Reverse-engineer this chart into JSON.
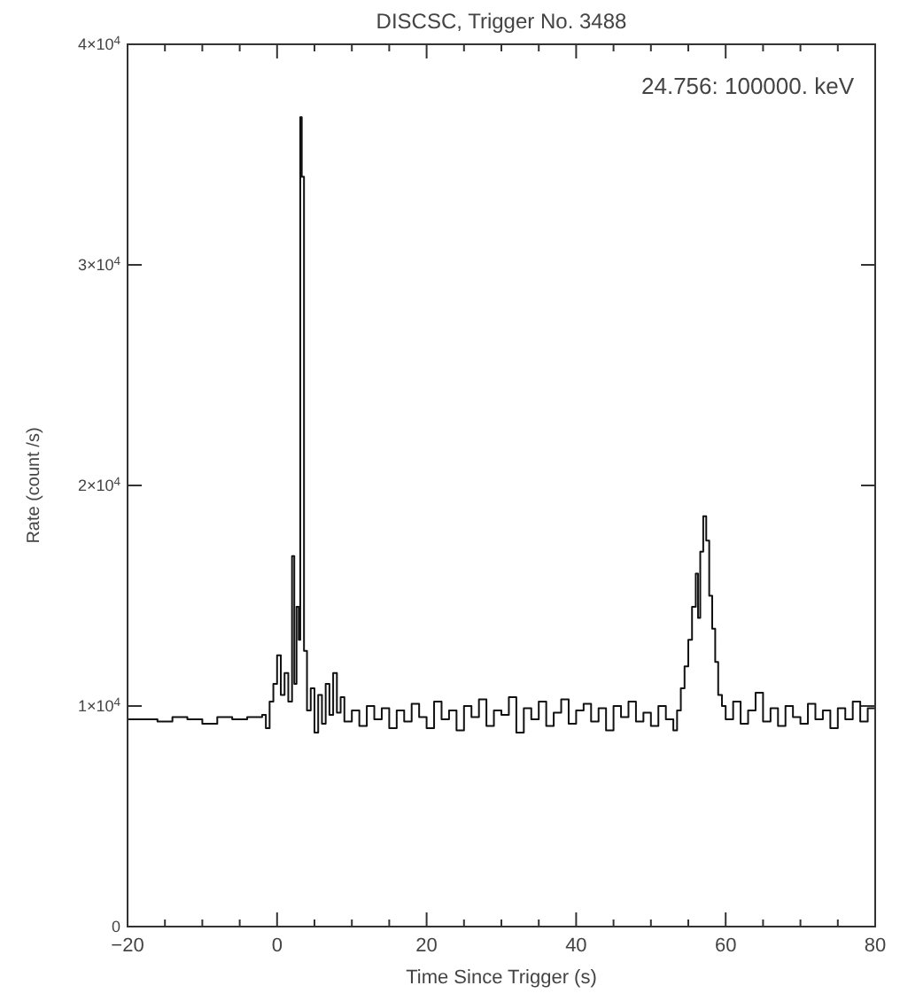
{
  "chart_data": {
    "type": "step",
    "title": "DISCSC, Trigger No. 3488",
    "xlabel": "Time Since Trigger (s)",
    "ylabel": "Rate (count /s)",
    "annotations": [
      "24.756: 100000. keV"
    ],
    "xlim": [
      -20,
      80
    ],
    "ylim": [
      0,
      40000
    ],
    "xticks": [
      -20,
      {
        "value": -15,
        "label": null
      },
      {
        "value": -10,
        "label": null
      },
      {
        "value": -5,
        "label": null
      },
      0,
      {
        "value": 5,
        "label": null
      },
      {
        "value": 10,
        "label": null
      },
      {
        "value": 15,
        "label": null
      },
      20,
      {
        "value": 25,
        "label": null
      },
      {
        "value": 30,
        "label": null
      },
      {
        "value": 35,
        "label": null
      },
      40,
      {
        "value": 45,
        "label": null
      },
      {
        "value": 50,
        "label": null
      },
      {
        "value": 55,
        "label": null
      },
      60,
      {
        "value": 65,
        "label": null
      },
      {
        "value": 70,
        "label": null
      },
      {
        "value": 75,
        "label": null
      },
      80
    ],
    "yticks": [
      0,
      {
        "value": 10000,
        "label": "1×10$^{4}$"
      },
      {
        "value": 20000,
        "label": "2×10$^{4}$"
      },
      {
        "value": 30000,
        "label": "3×10$^{4}$"
      },
      {
        "value": 40000,
        "label": "4×10$^{4}$"
      }
    ],
    "grid": false,
    "marker": "none",
    "line_style": "solid",
    "series": [
      {
        "color": "#111111",
        "x": [
          -20,
          -18,
          -16,
          -14,
          -12,
          -10,
          -8,
          -6,
          -4,
          -2,
          -1.5,
          -1,
          -0.5,
          0,
          0.5,
          1,
          1.5,
          2,
          2.3,
          2.6,
          2.9,
          3.1,
          3.3,
          3.6,
          4,
          4.5,
          5,
          5.5,
          6,
          6.5,
          7,
          7.5,
          8,
          8.5,
          9,
          10,
          11,
          12,
          13,
          14,
          15,
          16,
          17,
          18,
          19,
          20,
          21,
          22,
          23,
          24,
          25,
          26,
          27,
          28,
          29,
          30,
          31,
          32,
          33,
          34,
          35,
          36,
          37,
          38,
          39,
          40,
          41,
          42,
          43,
          44,
          45,
          46,
          47,
          48,
          49,
          50,
          51,
          52,
          53,
          53.5,
          54,
          54.5,
          55,
          55.5,
          56,
          56.3,
          56.6,
          57,
          57.4,
          57.8,
          58.2,
          58.6,
          59,
          59.5,
          60,
          61,
          62,
          63,
          64,
          65,
          66,
          67,
          68,
          69,
          70,
          71,
          72,
          73,
          74,
          75,
          76,
          77,
          78,
          79,
          80
        ],
        "values": [
          9400,
          9400,
          9300,
          9500,
          9400,
          9200,
          9500,
          9400,
          9500,
          9600,
          9000,
          10200,
          11000,
          12300,
          10500,
          11500,
          10200,
          16800,
          11000,
          14500,
          13000,
          36700,
          34000,
          12500,
          9800,
          10800,
          8800,
          10500,
          9200,
          11000,
          9600,
          11500,
          9700,
          10400,
          9300,
          9800,
          9100,
          10000,
          9400,
          9900,
          9000,
          9800,
          9300,
          10100,
          9500,
          9000,
          10200,
          9400,
          9800,
          8900,
          10000,
          9500,
          10300,
          9100,
          9800,
          9600,
          10400,
          8800,
          9900,
          9400,
          10200,
          9100,
          9700,
          10300,
          9200,
          9800,
          10100,
          9300,
          9900,
          8900,
          10000,
          9500,
          10200,
          9300,
          9700,
          9100,
          10000,
          9400,
          8900,
          9800,
          10800,
          11800,
          13000,
          14500,
          16000,
          14000,
          17000,
          18600,
          17500,
          15000,
          13500,
          12000,
          10500,
          10000,
          9400,
          10200,
          9200,
          9800,
          10600,
          9300,
          9900,
          9100,
          10000,
          9500,
          9200,
          10100,
          9400,
          9800,
          9000,
          9900,
          9400,
          10200,
          9300,
          9900,
          9500
        ]
      }
    ]
  }
}
